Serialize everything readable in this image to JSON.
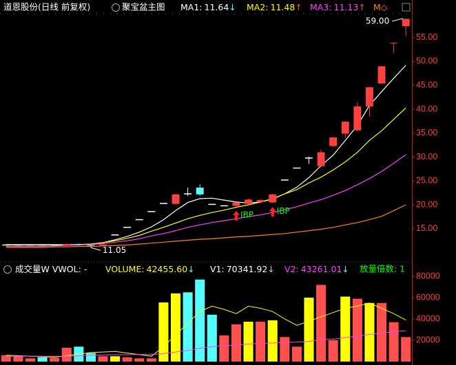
{
  "chart_data": [
    {
      "type": "candlestick",
      "title": "道恩股份(日线 前复权)",
      "indicator": "聚宝盆主图",
      "open": [
        11.6,
        11.6,
        11.6,
        11.6,
        11.6,
        11.5,
        11.8,
        11.6,
        11.5,
        13.7,
        15.3,
        16.9,
        18.6,
        20.3,
        20.2,
        22.3,
        23.6,
        20.1,
        19.8,
        19.8,
        20.2,
        20.6,
        20.5,
        25.2,
        27.7,
        29.8,
        28.1,
        32.3,
        34.9,
        35.6,
        40.6,
        45.4,
        53.8,
        57.4
      ],
      "high": [
        11.7,
        11.7,
        11.7,
        11.7,
        11.7,
        11.9,
        11.9,
        11.7,
        11.8,
        13.7,
        15.3,
        16.9,
        18.6,
        20.3,
        22.3,
        23.6,
        24.3,
        20.1,
        19.8,
        20.6,
        21.3,
        21.2,
        22.3,
        25.2,
        27.7,
        30.1,
        31.6,
        34.2,
        37.5,
        41.5,
        44.7,
        49.1,
        53.9,
        59
      ],
      "low": [
        11.5,
        11.5,
        11.6,
        11.5,
        11.5,
        11.4,
        11.5,
        11.05,
        11.4,
        13.7,
        15.3,
        16.9,
        18.6,
        20.3,
        20.1,
        21.9,
        21.9,
        20.1,
        19.8,
        19.6,
        20.0,
        20.3,
        20.4,
        25.2,
        27.7,
        28.6,
        27.9,
        32.1,
        34.0,
        35.4,
        38.5,
        45.3,
        51.8,
        55.3
      ],
      "close": [
        11.6,
        11.6,
        11.6,
        11.6,
        11.6,
        11.8,
        11.6,
        11.5,
        11.7,
        13.7,
        15.3,
        16.9,
        18.6,
        20.3,
        22.2,
        22.3,
        22.2,
        20.1,
        19.8,
        20.5,
        21.1,
        21.0,
        22.2,
        25.2,
        27.7,
        29.8,
        31.0,
        34.1,
        37.4,
        40.6,
        44.6,
        49.0,
        53.9,
        58.9
      ],
      "up_color": "#ff4040",
      "down_color": "#54ffff",
      "flat_color": "#ffffff",
      "signals": [
        null,
        null,
        null,
        null,
        null,
        null,
        null,
        null,
        null,
        null,
        null,
        null,
        null,
        null,
        null,
        null,
        null,
        null,
        null,
        "IBP",
        null,
        null,
        "IBP",
        null,
        null,
        null,
        null,
        null,
        null,
        null,
        null,
        null,
        null,
        null
      ],
      "signal_color": "#00ff00",
      "signal_arrow_color": "#ff2020",
      "series": [
        {
          "name": "MA1:",
          "readout": "11.64",
          "arrow": "↓",
          "arrow_color": "#54ffff",
          "color": "#ffffff",
          "values": [
            11.6,
            11.6,
            11.6,
            11.6,
            11.6,
            11.6,
            11.7,
            11.8,
            12.1,
            12.7,
            13.4,
            14.3,
            15.4,
            16.9,
            18.8,
            20.5,
            21.3,
            21.4,
            21.0,
            20.6,
            20.4,
            20.6,
            21.2,
            22.3,
            23.7,
            25.7,
            28.2,
            30.4,
            33.5,
            36.6,
            40.8,
            43.7,
            46.5,
            49.2
          ]
        },
        {
          "name": "MA2:",
          "readout": "11.48",
          "arrow": "↑",
          "arrow_color": "#ff4040",
          "color": "#ffff00",
          "values": [
            11.7,
            11.7,
            11.7,
            11.7,
            11.7,
            11.7,
            11.7,
            11.8,
            12.1,
            12.5,
            13.0,
            13.6,
            14.5,
            15.3,
            16.2,
            17.1,
            17.8,
            18.4,
            18.9,
            19.5,
            20.0,
            20.6,
            21.3,
            22.3,
            23.2,
            24.6,
            25.8,
            27.3,
            29.0,
            31.0,
            33.5,
            35.5,
            37.9,
            40.3
          ]
        },
        {
          "name": "MA3:",
          "readout": "11.13",
          "arrow": "↑",
          "arrow_color": "#ff4040",
          "color": "#ff40ff",
          "values": [
            11.3,
            11.3,
            11.3,
            11.3,
            11.4,
            11.5,
            11.6,
            11.7,
            11.9,
            12.2,
            12.5,
            12.9,
            13.5,
            14.0,
            14.6,
            15.3,
            15.8,
            16.3,
            16.7,
            17.1,
            17.5,
            17.9,
            18.4,
            19.0,
            19.6,
            20.4,
            21.1,
            22.0,
            23.0,
            24.2,
            25.5,
            27.0,
            28.7,
            30.5
          ]
        },
        {
          "name": "M◇",
          "color": "#ff8020",
          "values": [
            11.1,
            11.1,
            11.1,
            11.1,
            11.2,
            11.2,
            11.3,
            11.3,
            11.4,
            11.5,
            11.6,
            11.8,
            12.0,
            12.2,
            12.4,
            12.6,
            12.8,
            12.9,
            13.1,
            13.3,
            13.4,
            13.6,
            13.8,
            14.0,
            14.3,
            14.6,
            14.9,
            15.3,
            15.8,
            16.3,
            16.9,
            17.6,
            18.8,
            20.0
          ]
        }
      ],
      "high_label": {
        "value": 59,
        "label": "59.00"
      },
      "low_label": {
        "value": 11.05,
        "label": "11.05"
      },
      "ylim": [
        8.5,
        59.7
      ],
      "yticks": [
        {
          "value": 15,
          "label": "15.00"
        },
        {
          "value": 20,
          "label": "20.00"
        },
        {
          "value": 25,
          "label": "25.00"
        },
        {
          "value": 30,
          "label": "30.00"
        },
        {
          "value": 35,
          "label": "35.00"
        },
        {
          "value": 40,
          "label": "40.00"
        },
        {
          "value": 45,
          "label": "45.00"
        },
        {
          "value": 50,
          "label": "50.00"
        },
        {
          "value": 55,
          "label": "55.00"
        }
      ]
    },
    {
      "type": "bar",
      "title": "成交量W",
      "subtitle": "VWOL: -",
      "bar_name": "VOLUME:",
      "bar_readout": "42455.60",
      "bar_arrow": "↓",
      "bar_arrow_color": "#54ffff",
      "bar_label_color": "#ffff00",
      "values": [
        6000,
        5000,
        3000,
        4000,
        3500,
        13000,
        14000,
        8000,
        5000,
        5000,
        4000,
        3000,
        3000,
        55500,
        64000,
        65000,
        77000,
        44000,
        24500,
        35000,
        37400,
        37400,
        38700,
        23000,
        14000,
        60000,
        72000,
        20000,
        61000,
        59000,
        55000,
        55000,
        37000,
        23000
      ],
      "colors": [
        "#ff5050",
        "#ff5050",
        "#ff5050",
        "#54ffff",
        "#ff5050",
        "#ff5050",
        "#54ffff",
        "#54ffff",
        "#ff5050",
        "#ffff00",
        "#ff5050",
        "#ff5050",
        "#ff5050",
        "#ffff00",
        "#ffff00",
        "#54ffff",
        "#54ffff",
        "#54ffff",
        "#ff5050",
        "#ff5050",
        "#ffff00",
        "#ff5050",
        "#ffff00",
        "#ff5050",
        "#ff5050",
        "#ffff00",
        "#ff5050",
        "#ff5050",
        "#ffff00",
        "#ff5050",
        "#ffff00",
        "#ff5050",
        "#ff5050",
        "#ff5050"
      ],
      "series": [
        {
          "name": "V1:",
          "readout": "70341.92",
          "arrow": "↓",
          "arrow_color": "#54ffff",
          "color": "#ffff00",
          "label_color": "#ffffff",
          "values": [
            6000,
            5500,
            5000,
            4500,
            4000,
            5500,
            7000,
            8500,
            9000,
            9500,
            8000,
            6500,
            5000,
            14000,
            25000,
            36000,
            47000,
            52000,
            49000,
            45000,
            52000,
            50000,
            47000,
            40000,
            34000,
            38000,
            42000,
            46000,
            50000,
            52000,
            55000,
            50000,
            45000,
            39000
          ]
        },
        {
          "name": "V2:",
          "readout": "43261.01",
          "arrow": "↓",
          "arrow_color": "#54ffff",
          "color": "#ff40ff",
          "label_color": "#ff40ff",
          "values": [
            5000,
            5000,
            5000,
            5000,
            5000,
            5000,
            5500,
            6000,
            6200,
            6400,
            6500,
            6600,
            6600,
            7500,
            9000,
            10500,
            12500,
            14000,
            15000,
            15500,
            16500,
            17000,
            17500,
            18000,
            18200,
            19000,
            20500,
            21000,
            22500,
            24000,
            25500,
            27000,
            28000,
            29000
          ]
        }
      ],
      "extra": "放量倍数: 1",
      "extra_color": "#00ff00",
      "ylim": [
        0,
        91000
      ],
      "yticks": [
        20000,
        40000,
        60000,
        80000
      ]
    }
  ]
}
